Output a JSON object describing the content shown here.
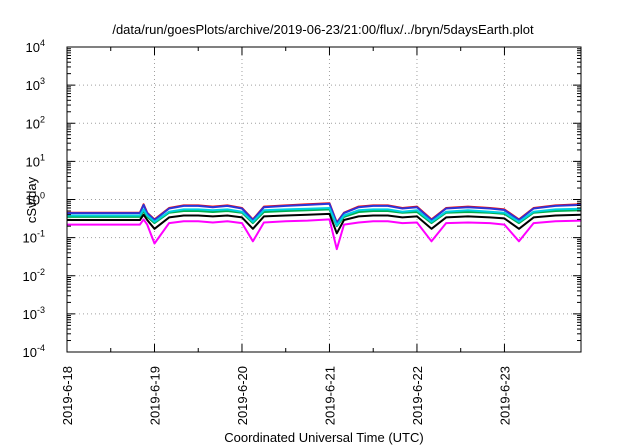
{
  "chart_data": {
    "type": "line",
    "title": "/data/run/goesPlots/archive/2019-06-23/21:00/flux/../bryn/5daysEarth.plot",
    "xlabel": "Coordinated Universal Time (UTC)",
    "ylabel": "cSv/day",
    "x_ticks": [
      "2019-6-18",
      "2019-6-19",
      "2019-6-20",
      "2019-6-21",
      "2019-6-22",
      "2019-6-23"
    ],
    "xlim": [
      "2019-06-18 00:00",
      "2019-06-23 21:00"
    ],
    "y_scale": "log",
    "ylim": [
      0.0001,
      10000
    ],
    "y_ticks": [
      {
        "base": "10",
        "exp": "-4"
      },
      {
        "base": "10",
        "exp": "-3"
      },
      {
        "base": "10",
        "exp": "-2"
      },
      {
        "base": "10",
        "exp": "-1"
      },
      {
        "base": "10",
        "exp": "0"
      },
      {
        "base": "10",
        "exp": "1"
      },
      {
        "base": "10",
        "exp": "2"
      },
      {
        "base": "10",
        "exp": "3"
      },
      {
        "base": "10",
        "exp": "4"
      }
    ],
    "grid": true,
    "legend": false,
    "x": [
      "2019-06-18 00:00",
      "2019-06-18 20:00",
      "2019-06-18 21:00",
      "2019-06-18 22:00",
      "2019-06-19 00:00",
      "2019-06-19 04:00",
      "2019-06-19 08:00",
      "2019-06-19 12:00",
      "2019-06-19 16:00",
      "2019-06-19 20:00",
      "2019-06-20 00:00",
      "2019-06-20 03:00",
      "2019-06-20 06:00",
      "2019-06-20 12:00",
      "2019-06-20 18:00",
      "2019-06-21 00:00",
      "2019-06-21 02:00",
      "2019-06-21 04:00",
      "2019-06-21 08:00",
      "2019-06-21 12:00",
      "2019-06-21 16:00",
      "2019-06-21 20:00",
      "2019-06-22 00:00",
      "2019-06-22 04:00",
      "2019-06-22 08:00",
      "2019-06-22 14:00",
      "2019-06-22 20:00",
      "2019-06-23 00:00",
      "2019-06-23 04:00",
      "2019-06-23 08:00",
      "2019-06-23 14:00",
      "2019-06-23 21:00"
    ],
    "series": [
      {
        "color": "#ff0000",
        "values": [
          0.45,
          0.45,
          0.75,
          0.45,
          0.3,
          0.6,
          0.7,
          0.7,
          0.65,
          0.7,
          0.6,
          0.3,
          0.65,
          0.7,
          0.75,
          0.8,
          0.25,
          0.45,
          0.65,
          0.7,
          0.7,
          0.6,
          0.65,
          0.3,
          0.6,
          0.65,
          0.6,
          0.55,
          0.3,
          0.6,
          0.7,
          0.75
        ]
      },
      {
        "color": "#2a36d8",
        "values": [
          0.44,
          0.44,
          0.72,
          0.44,
          0.29,
          0.58,
          0.68,
          0.68,
          0.63,
          0.68,
          0.58,
          0.29,
          0.63,
          0.68,
          0.72,
          0.77,
          0.24,
          0.44,
          0.63,
          0.68,
          0.68,
          0.58,
          0.63,
          0.29,
          0.58,
          0.63,
          0.58,
          0.53,
          0.29,
          0.58,
          0.68,
          0.72
        ]
      },
      {
        "color": "#00b050",
        "values": [
          0.35,
          0.35,
          0.5,
          0.35,
          0.24,
          0.45,
          0.5,
          0.5,
          0.47,
          0.5,
          0.45,
          0.24,
          0.47,
          0.5,
          0.52,
          0.55,
          0.2,
          0.35,
          0.47,
          0.5,
          0.5,
          0.45,
          0.47,
          0.24,
          0.45,
          0.47,
          0.45,
          0.42,
          0.24,
          0.45,
          0.5,
          0.52
        ]
      },
      {
        "color": "#00cfe0",
        "values": [
          0.38,
          0.38,
          0.55,
          0.38,
          0.26,
          0.48,
          0.55,
          0.55,
          0.52,
          0.55,
          0.48,
          0.26,
          0.52,
          0.55,
          0.57,
          0.6,
          0.21,
          0.38,
          0.52,
          0.55,
          0.55,
          0.48,
          0.52,
          0.26,
          0.48,
          0.52,
          0.48,
          0.45,
          0.26,
          0.48,
          0.55,
          0.57
        ]
      },
      {
        "color": "#000000",
        "values": [
          0.29,
          0.29,
          0.4,
          0.29,
          0.17,
          0.34,
          0.38,
          0.38,
          0.36,
          0.38,
          0.34,
          0.17,
          0.36,
          0.38,
          0.4,
          0.42,
          0.13,
          0.29,
          0.36,
          0.38,
          0.38,
          0.34,
          0.36,
          0.17,
          0.34,
          0.36,
          0.34,
          0.32,
          0.17,
          0.34,
          0.38,
          0.4
        ]
      },
      {
        "color": "#ff00ff",
        "values": [
          0.22,
          0.22,
          0.3,
          0.22,
          0.07,
          0.24,
          0.27,
          0.27,
          0.25,
          0.27,
          0.24,
          0.08,
          0.25,
          0.27,
          0.28,
          0.3,
          0.05,
          0.22,
          0.25,
          0.27,
          0.27,
          0.24,
          0.25,
          0.08,
          0.24,
          0.25,
          0.24,
          0.22,
          0.08,
          0.24,
          0.27,
          0.28
        ]
      }
    ]
  }
}
